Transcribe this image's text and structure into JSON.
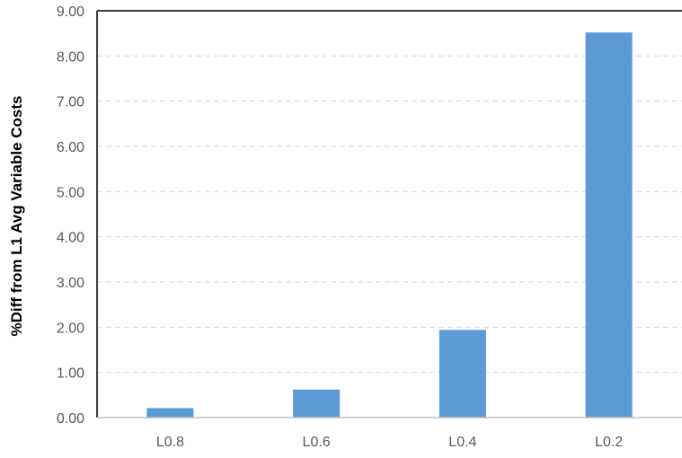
{
  "chart_data": {
    "type": "bar",
    "title": "",
    "xlabel": "",
    "ylabel": "%Diff from L1 Avg Variable Costs",
    "categories": [
      "L0.8",
      "L0.6",
      "L0.4",
      "L0.2"
    ],
    "series": [
      {
        "values": [
          0.21,
          0.62,
          1.94,
          8.52
        ]
      }
    ],
    "ylim": [
      0,
      9
    ],
    "ytick_step": 1,
    "ytick_labels": [
      "0.00",
      "1.00",
      "2.00",
      "3.00",
      "4.00",
      "5.00",
      "6.00",
      "7.00",
      "8.00",
      "9.00"
    ],
    "grid": true,
    "legend": "none",
    "bar_color": "#5B9BD5",
    "grid_color": "#D9D9D9",
    "axis_color": "#000000"
  }
}
